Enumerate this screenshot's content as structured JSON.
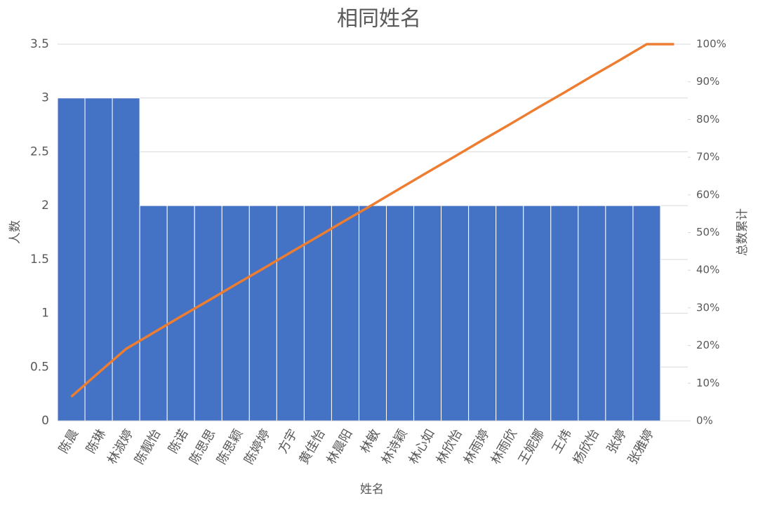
{
  "chart_data": {
    "type": "pareto",
    "title": "相同姓名",
    "x_label": "姓名",
    "y_label": "人数",
    "y2_label": "总数累计",
    "categories": [
      "陈晨",
      "陈琳",
      "林淑婷",
      "陈靓怡",
      "陈诺",
      "陈思思",
      "陈思颖",
      "陈婷婷",
      "方宇",
      "黄佳怡",
      "林晨阳",
      "林敏",
      "林诗颖",
      "林心如",
      "林欣怡",
      "林雨婷",
      "林雨欣",
      "王妮娜",
      "王炜",
      "杨欣怡",
      "张婷",
      "张雅婷",
      null
    ],
    "series": [
      {
        "name": "人数",
        "color": "#4472c4",
        "values": [
          3,
          3,
          3,
          2,
          2,
          2,
          2,
          2,
          2,
          2,
          2,
          2,
          2,
          2,
          2,
          2,
          2,
          2,
          2,
          2,
          2,
          2,
          null
        ]
      },
      {
        "name": "总数累计",
        "color": "#ed7d31",
        "axis": "y2",
        "values": [
          6.4,
          12.8,
          19.1,
          23.4,
          27.7,
          31.9,
          36.2,
          40.4,
          44.7,
          48.9,
          53.2,
          57.4,
          61.7,
          66.0,
          70.2,
          74.5,
          78.7,
          83.0,
          87.2,
          91.5,
          95.7,
          100,
          100
        ]
      }
    ],
    "ylim": [
      0,
      3.5
    ],
    "yticks": [
      0,
      0.5,
      1,
      1.5,
      2,
      2.5,
      3,
      3.5
    ],
    "y2lim": [
      0,
      100
    ],
    "y2ticks": [
      {
        "value": 0,
        "label": "0%"
      },
      {
        "value": 10,
        "label": "10%"
      },
      {
        "value": 20,
        "label": "20%"
      },
      {
        "value": 30,
        "label": "30%"
      },
      {
        "value": 40,
        "label": "40%"
      },
      {
        "value": 50,
        "label": "50%"
      },
      {
        "value": 60,
        "label": "60%"
      },
      {
        "value": 70,
        "label": "70%"
      },
      {
        "value": 80,
        "label": "80%"
      },
      {
        "value": 90,
        "label": "90%"
      },
      {
        "value": 100,
        "label": "100%"
      }
    ],
    "grid": true
  }
}
